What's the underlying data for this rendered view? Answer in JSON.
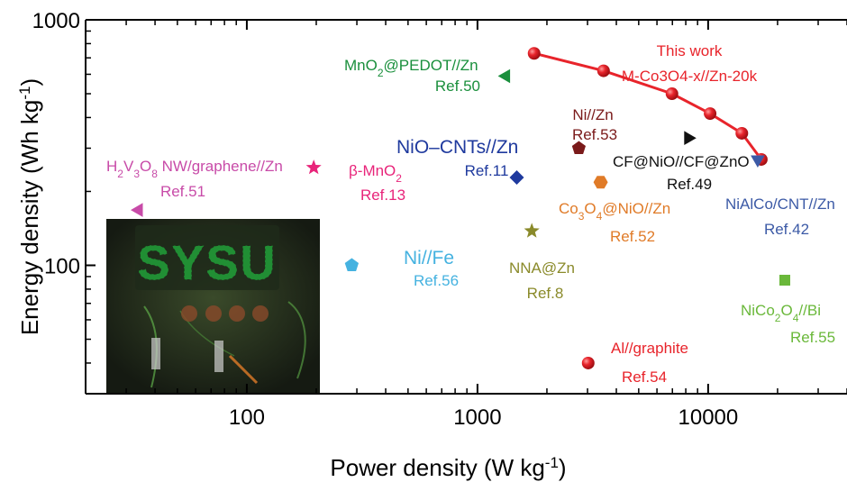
{
  "chart_data": {
    "type": "scatter",
    "x_scale": "log",
    "y_scale": "log",
    "xlim": [
      20,
      40000
    ],
    "ylim": [
      30,
      1000
    ],
    "xlabel": {
      "base": "Power density (W kg",
      "sup": "-1",
      "tail": ")"
    },
    "ylabel": {
      "base": "Energy density (Wh kg",
      "sup": "-1",
      "tail": ")"
    },
    "x_ticks": [
      {
        "value": 100,
        "label": "100"
      },
      {
        "value": 1000,
        "label": "1000"
      },
      {
        "value": 10000,
        "label": "10000"
      }
    ],
    "y_ticks": [
      {
        "value": 100,
        "label": "100"
      },
      {
        "value": 1000,
        "label": "1000"
      }
    ],
    "this_work": {
      "name": "This work",
      "subname": "M-Co3O4-x//Zn-20k",
      "color": "#e8242b",
      "marker": "circle",
      "points": [
        {
          "x": 1760,
          "y": 730
        },
        {
          "x": 3520,
          "y": 620
        },
        {
          "x": 6970,
          "y": 500
        },
        {
          "x": 10200,
          "y": 415
        },
        {
          "x": 14000,
          "y": 345
        },
        {
          "x": 17000,
          "y": 270
        }
      ]
    },
    "references": [
      {
        "id": "mno2-pedot",
        "name_parts": [
          [
            "MnO",
            false
          ],
          [
            "2",
            true
          ],
          [
            "@PEDOT//Zn",
            false
          ]
        ],
        "ref": "Ref.50",
        "marker": "triangle-left",
        "color": "#1a8f3c",
        "x": 1330,
        "y": 590
      },
      {
        "id": "h2v3o8",
        "name_parts": [
          [
            "H",
            false
          ],
          [
            "2",
            true
          ],
          [
            "V",
            false
          ],
          [
            "3",
            true
          ],
          [
            "O",
            false
          ],
          [
            "8",
            true
          ],
          [
            " NW/graphene//Zn",
            false
          ]
        ],
        "ref": "Ref.51",
        "marker": "triangle-left",
        "color": "#c84ba8",
        "x": 34,
        "y": 168
      },
      {
        "id": "beta-mno2",
        "name_parts": [
          [
            "β-MnO",
            false
          ],
          [
            "2",
            true
          ]
        ],
        "ref": "Ref.13",
        "marker": "star",
        "color": "#e8247a",
        "x": 195,
        "y": 250
      },
      {
        "id": "nio-cnts",
        "name_parts": [
          [
            "NiO–CNTs//Zn",
            false
          ]
        ],
        "ref": "Ref.11",
        "marker": "diamond",
        "color": "#1f3a9e",
        "x": 1480,
        "y": 228
      },
      {
        "id": "ni-zn",
        "name_parts": [
          [
            "Ni//Zn",
            false
          ]
        ],
        "ref": "Ref.53",
        "marker": "pentagon",
        "color": "#7a1a1a",
        "x": 2750,
        "y": 300
      },
      {
        "id": "cf-nio",
        "name_parts": [
          [
            "CF@NiO//CF@ZnO",
            false
          ]
        ],
        "ref": "Ref.49",
        "marker": "triangle-right",
        "color": "#111111",
        "x": 8200,
        "y": 330
      },
      {
        "id": "co3o4-nio",
        "name_parts": [
          [
            "Co",
            false
          ],
          [
            "3",
            true
          ],
          [
            "O",
            false
          ],
          [
            "4",
            true
          ],
          [
            "@NiO//Zn",
            false
          ]
        ],
        "ref": "Ref.52",
        "marker": "hexagon",
        "color": "#e07b28",
        "x": 3420,
        "y": 218
      },
      {
        "id": "nialco",
        "name_parts": [
          [
            "NiAlCo/CNT//Zn",
            false
          ]
        ],
        "ref": "Ref.42",
        "marker": "triangle-down",
        "color": "#3c5aa6",
        "x": 16400,
        "y": 270
      },
      {
        "id": "ni-fe",
        "name_parts": [
          [
            "Ni//Fe",
            false
          ]
        ],
        "ref": "Ref.56",
        "marker": "pentagon",
        "color": "#45b2e0",
        "x": 285,
        "y": 100
      },
      {
        "id": "nna-zn",
        "name_parts": [
          [
            "NNA@Zn",
            false
          ]
        ],
        "ref": "Ref.8",
        "marker": "star",
        "color": "#8a8a2a",
        "x": 1720,
        "y": 138
      },
      {
        "id": "nico2o4",
        "name_parts": [
          [
            "NiCo",
            false
          ],
          [
            "2",
            true
          ],
          [
            "O",
            false
          ],
          [
            "4",
            true
          ],
          [
            "//Bi",
            false
          ]
        ],
        "ref": "Ref.55",
        "marker": "square",
        "color": "#6ab83a",
        "x": 21500,
        "y": 87
      },
      {
        "id": "al-graphite",
        "name_parts": [
          [
            "Al//graphite",
            false
          ]
        ],
        "ref": "Ref.54",
        "marker": "circle",
        "color": "#e8242b",
        "x": 3020,
        "y": 40
      }
    ],
    "inset": {
      "text": "SYSU",
      "color": "#22e04a"
    }
  }
}
